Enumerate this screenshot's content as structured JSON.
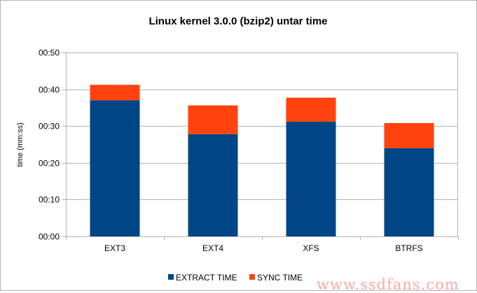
{
  "chart_data": {
    "type": "bar",
    "stacked": true,
    "title": "Linux kernel 3.0.0 (bzip2) untar time",
    "xlabel": "",
    "ylabel": "time (mm:ss)",
    "y_unit": "seconds",
    "ylim": [
      0,
      50
    ],
    "yticks": [
      0,
      10,
      20,
      30,
      40,
      50
    ],
    "ytick_labels": [
      "00:00",
      "00:10",
      "00:20",
      "00:30",
      "00:40",
      "00:50"
    ],
    "grid": true,
    "legend_position": "bottom",
    "categories": [
      "EXT3",
      "EXT4",
      "XFS",
      "BTRFS"
    ],
    "series": [
      {
        "name": "EXTRACT TIME",
        "color": "#004586",
        "values": [
          37,
          27.8,
          31.2,
          24
        ]
      },
      {
        "name": "SYNC TIME",
        "color": "#ff420e",
        "values": [
          4.2,
          7.8,
          6.5,
          6.8
        ]
      }
    ]
  },
  "watermark": "www.ssdfans.com"
}
